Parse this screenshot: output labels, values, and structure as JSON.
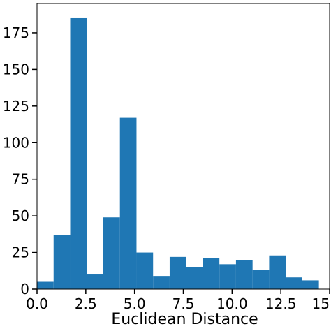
{
  "chart_data": {
    "type": "bar",
    "title": "",
    "xlabel": "Euclidean Distance",
    "ylabel": "",
    "xlim": [
      0.0,
      15.0
    ],
    "ylim": [
      0,
      195
    ],
    "x_ticks": [
      0.0,
      2.5,
      5.0,
      7.5,
      10.0,
      12.5,
      15.0
    ],
    "x_tick_labels": [
      "0.0",
      "2.5",
      "5.0",
      "7.5",
      "10.0",
      "12.5",
      "15"
    ],
    "y_ticks": [
      0,
      25,
      50,
      75,
      100,
      125,
      150,
      175
    ],
    "y_tick_labels": [
      "0",
      "25",
      "50",
      "75",
      "100",
      "125",
      "150",
      "175"
    ],
    "bin_edges": [
      0.0,
      0.85,
      1.7,
      2.55,
      3.4,
      4.25,
      5.1,
      5.95,
      6.8,
      7.65,
      8.5,
      9.35,
      10.2,
      11.05,
      11.9,
      12.75,
      13.6,
      14.45
    ],
    "values": [
      5,
      37,
      185,
      10,
      49,
      117,
      25,
      9,
      22,
      15,
      21,
      17,
      20,
      13,
      23,
      8,
      6
    ],
    "bar_color": "#1f77b4",
    "grid": false,
    "legend": "none"
  }
}
